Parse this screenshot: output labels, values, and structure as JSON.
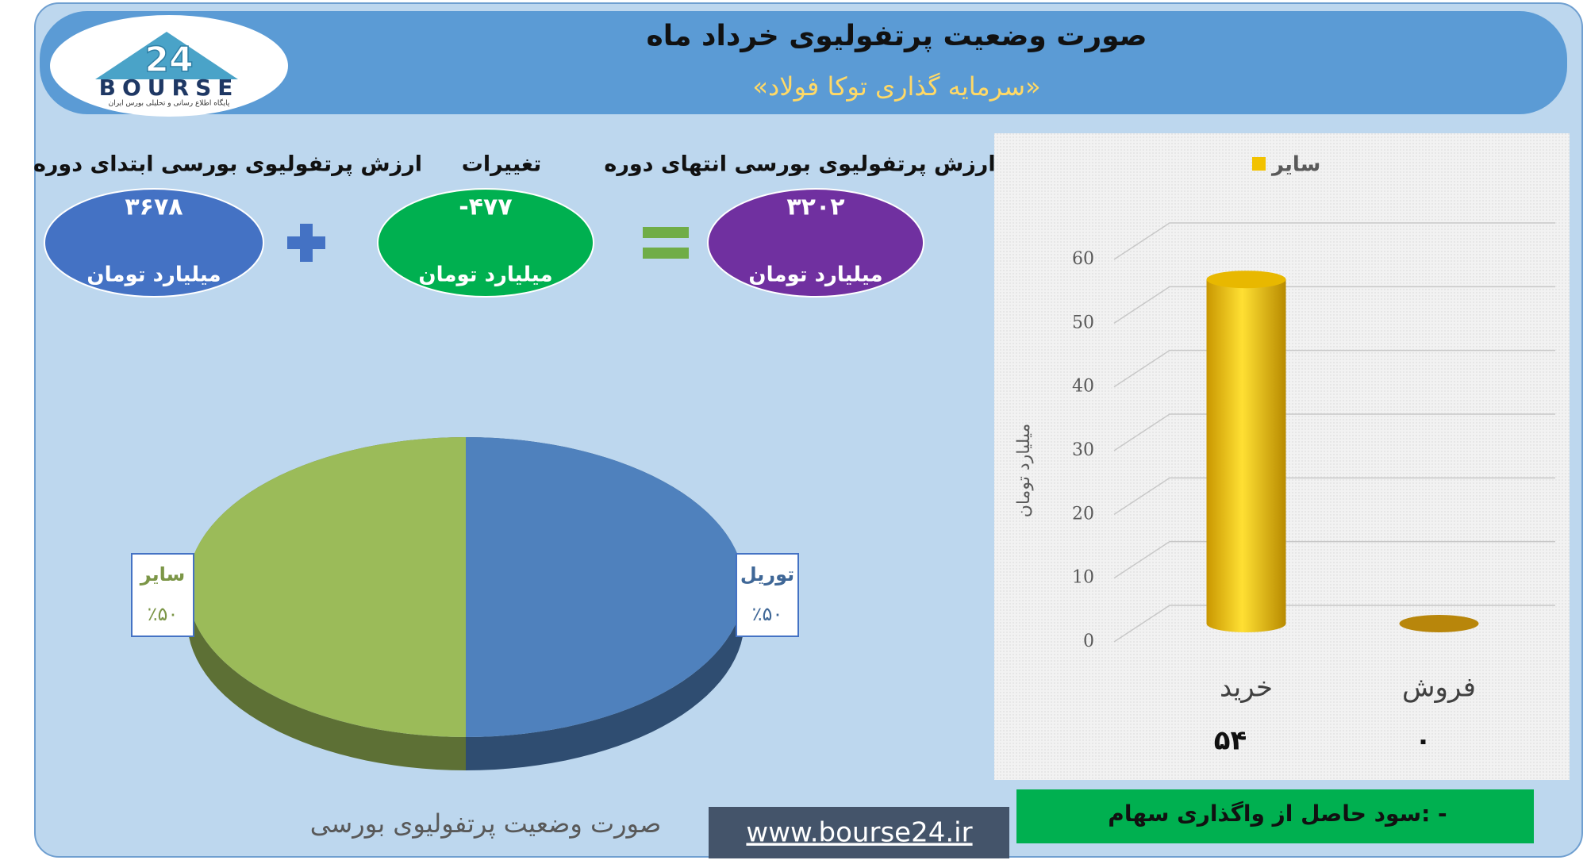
{
  "header": {
    "title": "صورت وضعیت پرتفولیوی خرداد ماه",
    "subtitle": "«سرمایه گذاری توکا فولاد»"
  },
  "logo": {
    "number": "24",
    "name": "BOURSE",
    "tagline": "پایگاه اطلاع رسانی و تحلیلی بورس ایران"
  },
  "summary": {
    "start": {
      "label": "ارزش پرتفولیوی بورسی ابتدای دوره",
      "value": "۳۶۷۸",
      "unit": "میلیارد تومان"
    },
    "change": {
      "label": "تغییرات",
      "value": "-۴۷۷",
      "unit": "میلیارد تومان"
    },
    "end": {
      "label": "ارزش پرتفولیوی بورسی انتهای دوره",
      "value": "۳۲۰۲",
      "unit": "میلیارد تومان"
    }
  },
  "chart_data": [
    {
      "type": "pie",
      "title": "صورت وضعیت پرتفولیوی بورسی",
      "categories": [
        "توریل",
        "سایر"
      ],
      "values": [
        50,
        50
      ],
      "value_labels": [
        "٪۵۰",
        "٪۵۰"
      ],
      "colors": [
        "#4f81bd",
        "#9bbb59"
      ]
    },
    {
      "type": "bar",
      "y_label": "میلیارد تومان",
      "categories": [
        "خرید",
        "فروش"
      ],
      "series": [
        {
          "name": "سایر",
          "color": "#f2c200",
          "values": [
            54,
            0
          ],
          "value_labels": [
            "۵۴",
            "۰"
          ]
        }
      ],
      "ylim": [
        0,
        60
      ],
      "yticks": [
        0,
        10,
        20,
        30,
        40,
        50,
        60
      ],
      "grid": true,
      "legend": "top"
    }
  ],
  "footer": {
    "profit": "سود حاصل از واگذاری سهام: -",
    "website": "www.bourse24.ir"
  }
}
